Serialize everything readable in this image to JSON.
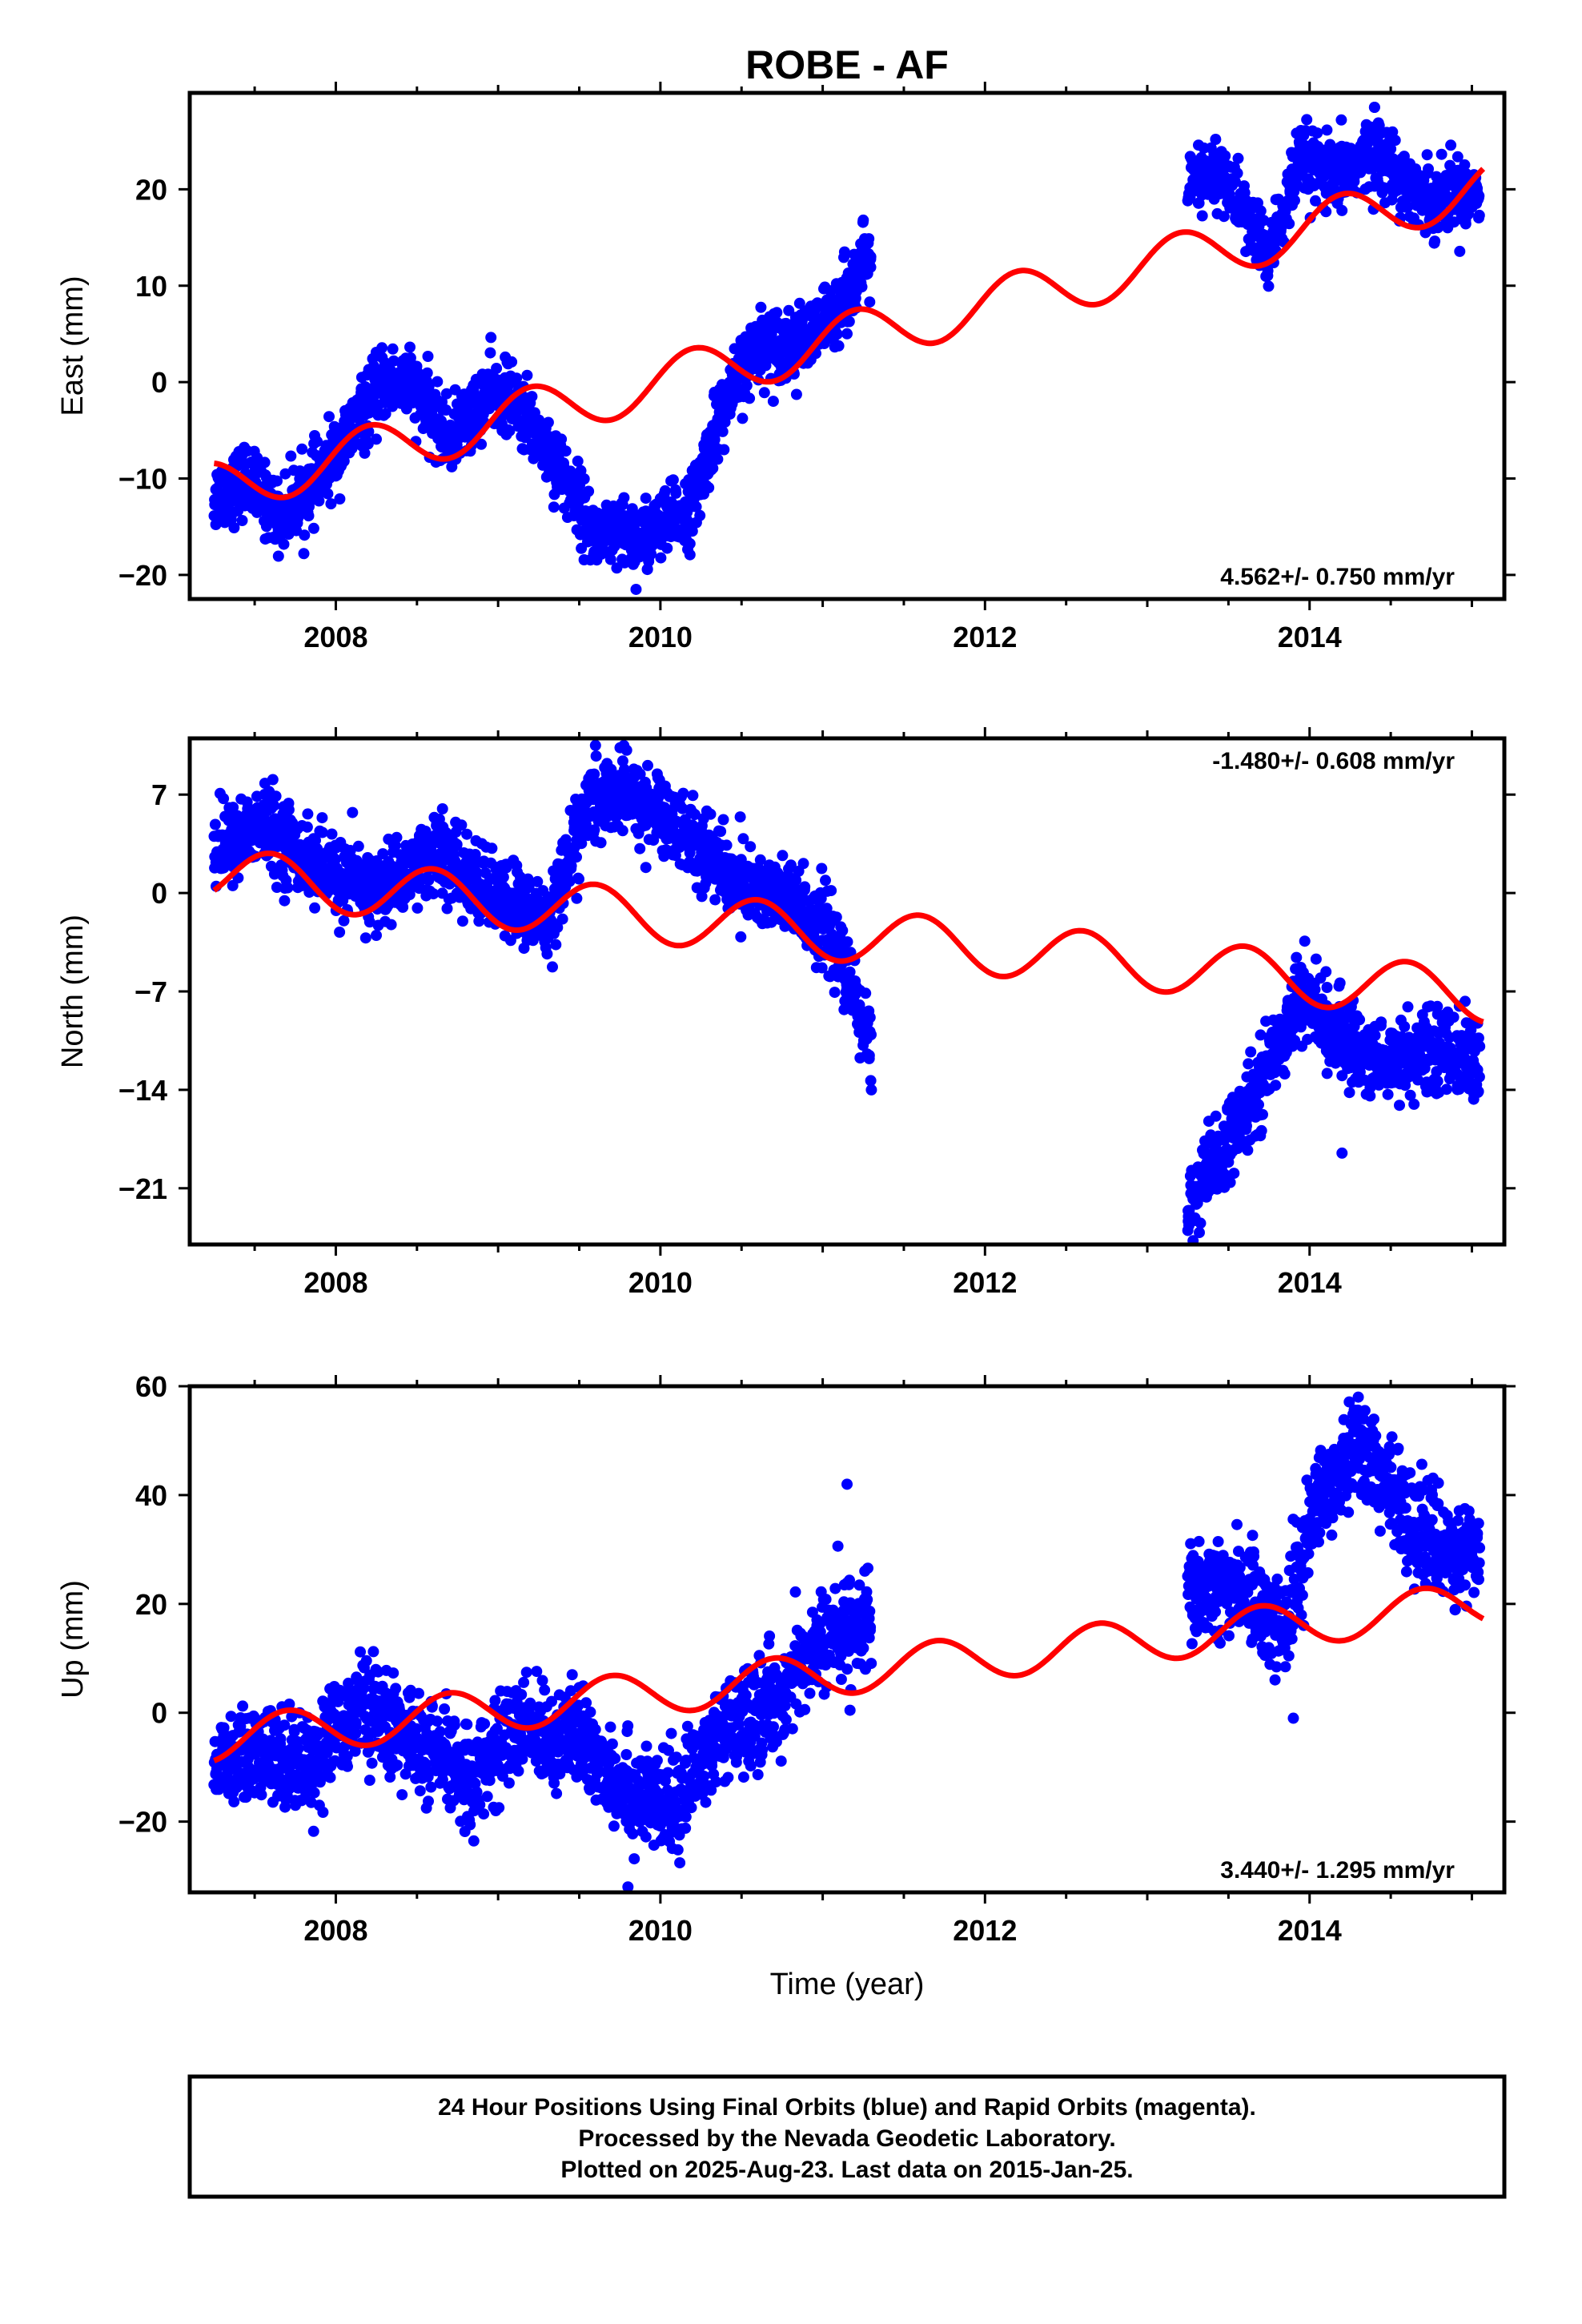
{
  "title": "ROBE - AF",
  "colors": {
    "final_orbits": "#0000ff",
    "model_fit": "#ff0000",
    "frame": "#000000"
  },
  "chart_data": [
    {
      "type": "scatter",
      "ylabel": "East (mm)",
      "xlabel": "",
      "xlim": [
        2007.1,
        2015.2
      ],
      "ylim": [
        -22.5,
        30
      ],
      "x_ticks": [
        2008,
        2010,
        2012,
        2014
      ],
      "x_tick_labels": [
        "2008",
        "2010",
        "2012",
        "2014"
      ],
      "y_ticks": [
        -20,
        -10,
        0,
        10,
        20
      ],
      "y_tick_labels": [
        "−20",
        "−10",
        "0",
        "10",
        "20"
      ],
      "rate": "4.562+/- 0.750 mm/yr",
      "rate_position": "bottom-right",
      "points_profile": [
        {
          "x": 2007.25,
          "y": -12
        },
        {
          "x": 2007.45,
          "y": -10
        },
        {
          "x": 2007.65,
          "y": -14
        },
        {
          "x": 2007.9,
          "y": -10
        },
        {
          "x": 2008.1,
          "y": -5
        },
        {
          "x": 2008.3,
          "y": 0
        },
        {
          "x": 2008.45,
          "y": 0
        },
        {
          "x": 2008.7,
          "y": -6
        },
        {
          "x": 2008.95,
          "y": -1
        },
        {
          "x": 2009.1,
          "y": -2
        },
        {
          "x": 2009.35,
          "y": -8
        },
        {
          "x": 2009.6,
          "y": -16
        },
        {
          "x": 2009.9,
          "y": -16
        },
        {
          "x": 2010.2,
          "y": -13
        },
        {
          "x": 2010.35,
          "y": -4
        },
        {
          "x": 2010.6,
          "y": 4
        },
        {
          "x": 2010.9,
          "y": 4
        },
        {
          "x": 2011.1,
          "y": 8
        },
        {
          "x": 2011.3,
          "y": 13
        },
        {
          "x": 2013.25,
          "y": 20
        },
        {
          "x": 2013.45,
          "y": 22
        },
        {
          "x": 2013.75,
          "y": 13
        },
        {
          "x": 2013.95,
          "y": 23
        },
        {
          "x": 2014.15,
          "y": 21
        },
        {
          "x": 2014.4,
          "y": 24
        },
        {
          "x": 2014.7,
          "y": 19
        },
        {
          "x": 2015.05,
          "y": 20
        }
      ],
      "points_spread": 1.8,
      "outliers": [
        {
          "x": 2009.85,
          "y": -21.5
        },
        {
          "x": 2011.25,
          "y": 16.8
        },
        {
          "x": 2014.4,
          "y": 28.5
        }
      ],
      "model": {
        "intercept_year": 2007.25,
        "intercept": -11.0,
        "rate": 4.0,
        "amplitude": 2.7,
        "phase_year": 2007.95
      }
    },
    {
      "type": "scatter",
      "ylabel": "North (mm)",
      "xlabel": "",
      "xlim": [
        2007.1,
        2015.2
      ],
      "ylim": [
        -25,
        11
      ],
      "x_ticks": [
        2008,
        2010,
        2012,
        2014
      ],
      "x_tick_labels": [
        "2008",
        "2010",
        "2012",
        "2014"
      ],
      "y_ticks": [
        -21,
        -14,
        -7,
        0,
        7
      ],
      "y_tick_labels": [
        "−21",
        "−14",
        "−7",
        "0",
        "7"
      ],
      "rate": "-1.480+/- 0.608 mm/yr",
      "rate_position": "top-right",
      "points_profile": [
        {
          "x": 2007.25,
          "y": 3
        },
        {
          "x": 2007.55,
          "y": 5
        },
        {
          "x": 2007.85,
          "y": 2
        },
        {
          "x": 2008.25,
          "y": 0
        },
        {
          "x": 2008.6,
          "y": 3
        },
        {
          "x": 2008.95,
          "y": 0
        },
        {
          "x": 2009.3,
          "y": -2
        },
        {
          "x": 2009.55,
          "y": 6
        },
        {
          "x": 2009.75,
          "y": 7
        },
        {
          "x": 2009.95,
          "y": 6
        },
        {
          "x": 2010.2,
          "y": 4
        },
        {
          "x": 2010.45,
          "y": 1
        },
        {
          "x": 2010.85,
          "y": -1
        },
        {
          "x": 2011.05,
          "y": -3
        },
        {
          "x": 2011.3,
          "y": -11
        },
        {
          "x": 2013.25,
          "y": -22
        },
        {
          "x": 2013.55,
          "y": -17
        },
        {
          "x": 2013.8,
          "y": -11
        },
        {
          "x": 2013.95,
          "y": -7
        },
        {
          "x": 2014.15,
          "y": -10
        },
        {
          "x": 2014.45,
          "y": -12
        },
        {
          "x": 2014.8,
          "y": -11
        },
        {
          "x": 2015.05,
          "y": -12
        }
      ],
      "points_spread": 1.4,
      "outliers": [
        {
          "x": 2009.6,
          "y": 10.5
        },
        {
          "x": 2011.3,
          "y": -14
        },
        {
          "x": 2013.25,
          "y": -24
        },
        {
          "x": 2014.2,
          "y": -18.5
        }
      ],
      "model": {
        "intercept_year": 2007.25,
        "intercept": 1.3,
        "rate": -1.1,
        "amplitude": 1.9,
        "phase_year": 2007.35
      }
    },
    {
      "type": "scatter",
      "ylabel": "Up (mm)",
      "xlabel": "Time (year)",
      "xlim": [
        2007.1,
        2015.2
      ],
      "ylim": [
        -33,
        60
      ],
      "x_ticks": [
        2008,
        2010,
        2012,
        2014
      ],
      "x_tick_labels": [
        "2008",
        "2010",
        "2012",
        "2014"
      ],
      "y_ticks": [
        -20,
        0,
        20,
        40,
        60
      ],
      "y_tick_labels": [
        "−20",
        "0",
        "20",
        "40",
        "60"
      ],
      "rate": "3.440+/- 1.295 mm/yr",
      "rate_position": "bottom-right",
      "points_profile": [
        {
          "x": 2007.25,
          "y": -10
        },
        {
          "x": 2007.55,
          "y": -8
        },
        {
          "x": 2007.85,
          "y": -9
        },
        {
          "x": 2008.15,
          "y": 2
        },
        {
          "x": 2008.5,
          "y": -6
        },
        {
          "x": 2008.85,
          "y": -12
        },
        {
          "x": 2009.1,
          "y": -3
        },
        {
          "x": 2009.5,
          "y": -5
        },
        {
          "x": 2009.85,
          "y": -15
        },
        {
          "x": 2010.05,
          "y": -18
        },
        {
          "x": 2010.35,
          "y": -5
        },
        {
          "x": 2010.7,
          "y": 2
        },
        {
          "x": 2010.95,
          "y": 12
        },
        {
          "x": 2011.3,
          "y": 18
        },
        {
          "x": 2013.25,
          "y": 20
        },
        {
          "x": 2013.55,
          "y": 24
        },
        {
          "x": 2013.85,
          "y": 15
        },
        {
          "x": 2014.05,
          "y": 40
        },
        {
          "x": 2014.3,
          "y": 50
        },
        {
          "x": 2014.55,
          "y": 38
        },
        {
          "x": 2014.8,
          "y": 30
        },
        {
          "x": 2015.05,
          "y": 28
        }
      ],
      "points_spread": 4.5,
      "outliers": [
        {
          "x": 2009.8,
          "y": -32
        },
        {
          "x": 2011.15,
          "y": 42
        },
        {
          "x": 2013.9,
          "y": -1
        },
        {
          "x": 2014.3,
          "y": 58
        }
      ],
      "model": {
        "intercept_year": 2007.25,
        "intercept": -5.0,
        "rate": 3.2,
        "amplitude": 4.0,
        "phase_year": 2007.45
      }
    }
  ],
  "footnote": {
    "lines": [
      "24 Hour Positions Using Final Orbits (blue) and Rapid Orbits (magenta).",
      "Processed by the Nevada Geodetic Laboratory.",
      "Plotted on 2025-Aug-23. Last data on 2015-Jan-25."
    ]
  }
}
